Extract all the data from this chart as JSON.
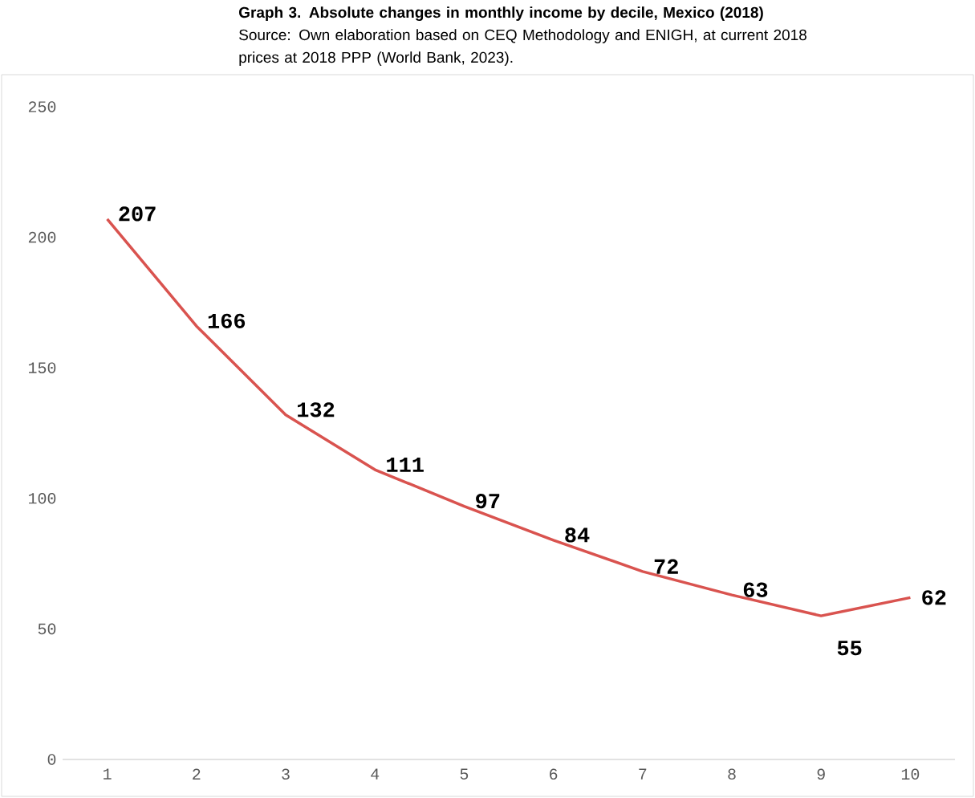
{
  "chart_data": {
    "type": "line",
    "title": "Graph 3. Absolute changes in monthly income by decile, Mexico (2018)",
    "subtitle": "Source: Own elaboration based on CEQ Methodology and ENIGH, at current 2018 prices at 2018 PPP (World Bank, 2023).",
    "categories": [
      "1",
      "2",
      "3",
      "4",
      "5",
      "6",
      "7",
      "8",
      "9",
      "10"
    ],
    "values": [
      207,
      166,
      132,
      111,
      97,
      84,
      72,
      63,
      55,
      62
    ],
    "color": "#d9534f",
    "ylim": [
      0,
      250
    ],
    "yticks": [
      0,
      50,
      100,
      150,
      200,
      250
    ],
    "grid": false,
    "marker": "none",
    "line_style": "solid",
    "data_labels": true
  }
}
